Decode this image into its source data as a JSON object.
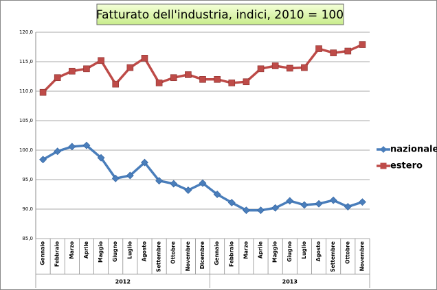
{
  "chart_data": {
    "type": "line",
    "title": "Fatturato  dell'industria, indici, 2010 = 100",
    "categories": [
      "Gennaio",
      "Febbraio",
      "Marzo",
      "Aprile",
      "Maggio",
      "Giugno",
      "Luglio",
      "Agosto",
      "Settembre",
      "Ottobre",
      "Novembre",
      "Dicembre",
      "Gennaio",
      "Febbraio",
      "Marzo",
      "Aprile",
      "Maggio",
      "Giugno",
      "Luglio",
      "Agosto",
      "Settembre",
      "Ottobre",
      "Novembre"
    ],
    "x_groups": [
      {
        "label": "2012",
        "count": 12
      },
      {
        "label": "2013",
        "count": 11
      }
    ],
    "series": [
      {
        "name": "nazionale",
        "color": "#4a7ebb",
        "marker": "diamond",
        "values": [
          98.4,
          99.8,
          100.6,
          100.8,
          98.7,
          95.2,
          95.7,
          97.9,
          94.8,
          94.3,
          93.2,
          94.4,
          92.5,
          91.1,
          89.8,
          89.8,
          90.2,
          91.4,
          90.7,
          90.9,
          91.5,
          90.4,
          91.2
        ]
      },
      {
        "name": "estero",
        "color": "#be4b48",
        "marker": "square",
        "values": [
          109.8,
          112.3,
          113.4,
          113.8,
          115.2,
          111.2,
          114.0,
          115.6,
          111.4,
          112.3,
          112.8,
          112.0,
          112.0,
          111.4,
          111.6,
          113.8,
          114.3,
          113.9,
          114.0,
          117.2,
          116.5,
          116.8,
          117.9
        ]
      }
    ],
    "ylim": [
      85,
      120
    ],
    "yticks": [
      {
        "value": 85,
        "label": "85,0"
      },
      {
        "value": 90,
        "label": "90,0"
      },
      {
        "value": 95,
        "label": "95,0"
      },
      {
        "value": 100,
        "label": "100,0"
      },
      {
        "value": 105,
        "label": "105,0"
      },
      {
        "value": 110,
        "label": "110,0"
      },
      {
        "value": 115,
        "label": "115,0"
      },
      {
        "value": 120,
        "label": "120,0"
      }
    ],
    "grid": true,
    "legend": "right"
  }
}
